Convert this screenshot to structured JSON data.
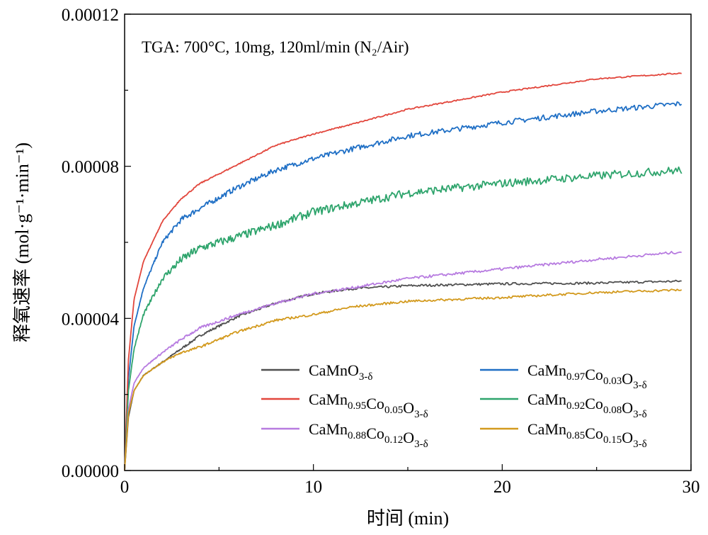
{
  "chart_data": {
    "type": "line",
    "title": "",
    "annotation": "TGA: 700°C, 10mg, 120ml/min (N₂/Air)",
    "xlabel": "时间 (min)",
    "ylabel": "释氧速率 (mol·g⁻¹·min⁻¹)",
    "xlim": [
      0,
      30
    ],
    "ylim": [
      0,
      0.00012
    ],
    "x_ticks": [
      "0",
      "10",
      "20",
      "30"
    ],
    "y_ticks": [
      "0.00000",
      "0.00004",
      "0.00008",
      "0.00012"
    ],
    "grid": false,
    "legend_position": "bottom-right",
    "series": [
      {
        "name": "CaMnO3-δ",
        "color": "#505050",
        "x": [
          0,
          0.2,
          0.5,
          1,
          2,
          3,
          4,
          6,
          8,
          10,
          12,
          15,
          20,
          25,
          29.5
        ],
        "y": [
          0,
          1.4e-05,
          2.1e-05,
          2.5e-05,
          2.85e-05,
          3.2e-05,
          3.55e-05,
          4.05e-05,
          4.4e-05,
          4.65e-05,
          4.78e-05,
          4.86e-05,
          4.91e-05,
          4.93e-05,
          4.98e-05
        ]
      },
      {
        "name": "CaMn0.97Co0.03O3-δ",
        "color": "#1f6fc5",
        "x": [
          0,
          0.2,
          0.5,
          1,
          2,
          3,
          4,
          6,
          8,
          10,
          12,
          15,
          20,
          25,
          29.5
        ],
        "y": [
          0,
          2.4e-05,
          3.8e-05,
          4.8e-05,
          6e-05,
          6.6e-05,
          6.9e-05,
          7.45e-05,
          7.9e-05,
          8.2e-05,
          8.45e-05,
          8.8e-05,
          9.15e-05,
          9.45e-05,
          9.65e-05
        ]
      },
      {
        "name": "CaMn0.95Co0.05O3-δ",
        "color": "#e2463c",
        "x": [
          0,
          0.2,
          0.5,
          1,
          2,
          3,
          4,
          6,
          8,
          10,
          12,
          15,
          20,
          25,
          29.5
        ],
        "y": [
          0,
          2.9e-05,
          4.5e-05,
          5.5e-05,
          6.55e-05,
          7.15e-05,
          7.55e-05,
          8.05e-05,
          8.55e-05,
          8.85e-05,
          9.1e-05,
          9.5e-05,
          9.95e-05,
          0.000103,
          0.0001045
        ]
      },
      {
        "name": "CaMn0.92Co0.08O3-δ",
        "color": "#2ea46c",
        "x": [
          0,
          0.2,
          0.5,
          1,
          2,
          3,
          4,
          6,
          8,
          10,
          12,
          15,
          20,
          25,
          29.5
        ],
        "y": [
          0,
          2.1e-05,
          3.2e-05,
          4.1e-05,
          5.05e-05,
          5.55e-05,
          5.85e-05,
          6.15e-05,
          6.45e-05,
          6.8e-05,
          7e-05,
          7.3e-05,
          7.55e-05,
          7.75e-05,
          7.9e-05
        ]
      },
      {
        "name": "CaMn0.88Co0.12O3-δ",
        "color": "#b77be0",
        "x": [
          0,
          0.2,
          0.5,
          1,
          2,
          3,
          4,
          6,
          8,
          10,
          12,
          15,
          20,
          25,
          29.5
        ],
        "y": [
          0,
          1.6e-05,
          2.3e-05,
          2.7e-05,
          3.1e-05,
          3.45e-05,
          3.75e-05,
          4.1e-05,
          4.4e-05,
          4.65e-05,
          4.8e-05,
          5.05e-05,
          5.3e-05,
          5.55e-05,
          5.75e-05
        ]
      },
      {
        "name": "CaMn0.85Co0.15O3-δ",
        "color": "#d39a1e",
        "x": [
          0,
          0.2,
          0.5,
          1,
          2,
          3,
          4,
          6,
          8,
          10,
          12,
          15,
          20,
          25,
          29.5
        ],
        "y": [
          0,
          1.5e-05,
          2.1e-05,
          2.5e-05,
          2.85e-05,
          3.1e-05,
          3.25e-05,
          3.65e-05,
          3.95e-05,
          4.1e-05,
          4.3e-05,
          4.45e-05,
          4.55e-05,
          4.68e-05,
          4.75e-05
        ]
      }
    ]
  },
  "legend": [
    {
      "base": "CaMn",
      "parts": [
        [
          "O",
          "3-δ"
        ]
      ]
    },
    {
      "base": "CaMn",
      "parts": [
        [
          "",
          "0.97"
        ],
        [
          "Co",
          "0.03"
        ],
        [
          "O",
          "3-δ"
        ]
      ]
    },
    {
      "base": "CaMn",
      "parts": [
        [
          "",
          "0.95"
        ],
        [
          "Co",
          "0.05"
        ],
        [
          "O",
          "3-δ"
        ]
      ]
    },
    {
      "base": "CaMn",
      "parts": [
        [
          "",
          "0.92"
        ],
        [
          "Co",
          "0.08"
        ],
        [
          "O",
          "3-δ"
        ]
      ]
    },
    {
      "base": "CaMn",
      "parts": [
        [
          "",
          "0.88"
        ],
        [
          "Co",
          "0.12"
        ],
        [
          "O",
          "3-δ"
        ]
      ]
    },
    {
      "base": "CaMn",
      "parts": [
        [
          "",
          "0.85"
        ],
        [
          "Co",
          "0.15"
        ],
        [
          "O",
          "3-δ"
        ]
      ]
    }
  ]
}
